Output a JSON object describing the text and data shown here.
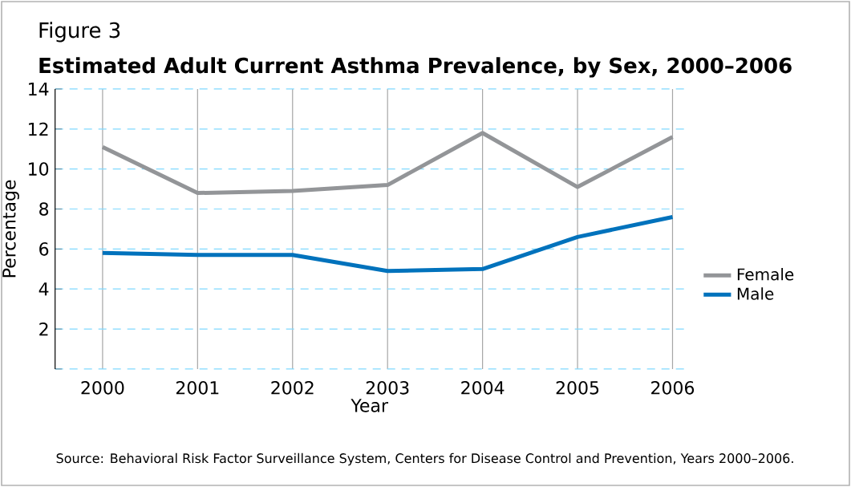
{
  "chart_data": {
    "type": "line",
    "title": "Figure 3",
    "subtitle": "Estimated Adult Current Asthma Prevalence, by Sex, 2000–2006",
    "xlabel": "Year",
    "ylabel": "Percentage",
    "categories": [
      "2000",
      "2001",
      "2002",
      "2003",
      "2004",
      "2005",
      "2006"
    ],
    "series": [
      {
        "name": "Female",
        "color": "#939598",
        "values": [
          11.1,
          8.8,
          8.9,
          9.2,
          11.8,
          9.1,
          11.6
        ]
      },
      {
        "name": "Male",
        "color": "#0072bc",
        "values": [
          5.8,
          5.7,
          5.7,
          4.9,
          5.0,
          6.6,
          7.6
        ]
      }
    ],
    "ylim": [
      0,
      14
    ],
    "yticks": [
      {
        "value": 0,
        "label": null
      },
      2,
      4,
      6,
      8,
      10,
      12,
      14
    ],
    "grid": true,
    "legend": "right",
    "marker": "none",
    "line_style": "solid",
    "annotations": [
      "Source: Behavioral Risk Factor Surveillance System, Centers for Disease Control and Prevention, Years 2000–2006."
    ]
  }
}
